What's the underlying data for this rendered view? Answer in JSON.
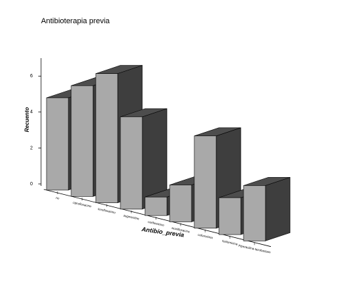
{
  "chart_data": {
    "type": "bar3d",
    "title": "Antibioterapia previa",
    "x_label": "Antibio_previa",
    "y_label": "Recuento",
    "categories": [
      "no",
      "ciprofloxacino",
      "levofloxacino",
      "augmentine",
      "norfloxacino",
      "moxifloxacino",
      "cefuroxima",
      "fosfomicina",
      "Piperacilina-tazobactam"
    ],
    "values": [
      5,
      6,
      7,
      5,
      1,
      2,
      5,
      2,
      3
    ],
    "color": "#a9a9a9",
    "ylim": [
      0,
      7
    ],
    "yticks": [
      0,
      2,
      4,
      6
    ]
  }
}
